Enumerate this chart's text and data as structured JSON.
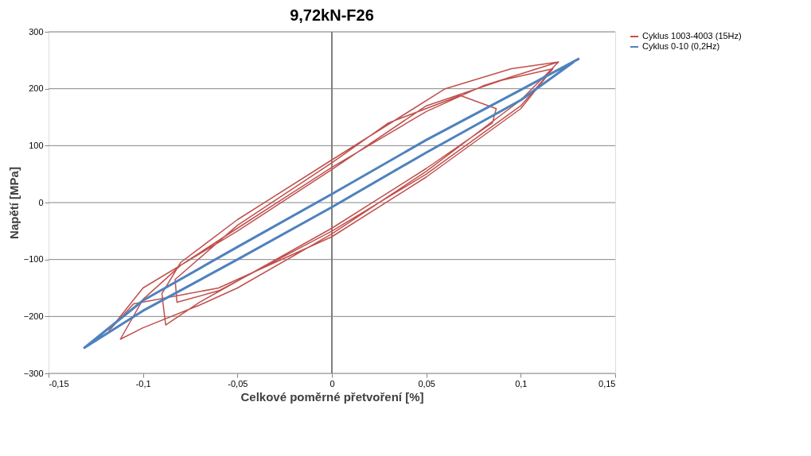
{
  "chart_data": {
    "type": "line",
    "title": "9,72kN-F26",
    "xlabel": "Celkové poměrné přetvoření [%]",
    "ylabel": "Napětí [MPa]",
    "xlim": [
      -0.15,
      0.15
    ],
    "xticks": [
      {
        "value": -0.15,
        "label": "-0,15"
      },
      {
        "value": -0.1,
        "label": "-0,1"
      },
      {
        "value": -0.05,
        "label": "-0,05"
      },
      {
        "value": 0,
        "label": "0"
      },
      {
        "value": 0.05,
        "label": "0,05"
      },
      {
        "value": 0.1,
        "label": "0,1"
      },
      {
        "value": 0.15,
        "label": "0,15"
      }
    ],
    "ylim": [
      -300,
      300
    ],
    "yticks": [
      -300,
      -200,
      -100,
      0,
      100,
      200,
      300
    ],
    "grid": "y",
    "legend": "right",
    "line_style": "solid",
    "ref_lines": [
      {
        "axis": "x",
        "value": 0,
        "color": "#7f7f7f"
      }
    ],
    "series": [
      {
        "name": "Cyklus 1003-4003 (15Hz)",
        "color": "#c0504d",
        "x": [
          0.12,
          0.08,
          0.05,
          0,
          -0.05,
          -0.08,
          -0.1,
          -0.112,
          -0.1,
          -0.07,
          -0.05,
          0,
          0.05,
          0.1,
          0.12,
          0.095,
          0.06,
          0,
          -0.05,
          -0.08,
          -0.09,
          -0.088,
          -0.07,
          0,
          0.05,
          0.085,
          0.087,
          0.068,
          0.03,
          0,
          -0.05,
          -0.083,
          -0.082,
          -0.06,
          0,
          0.05,
          0.1,
          0.117,
          0.09,
          0.05,
          0,
          -0.05,
          -0.1,
          -0.118,
          -0.105,
          -0.06,
          0,
          0.05,
          0.1,
          0.117
        ],
        "values": [
          247,
          205,
          160,
          62,
          -45,
          -110,
          -170,
          -240,
          -220,
          -180,
          -150,
          -55,
          55,
          180,
          247,
          235,
          200,
          75,
          -30,
          -105,
          -160,
          -215,
          -175,
          -45,
          60,
          140,
          165,
          188,
          140,
          70,
          -40,
          -135,
          -175,
          -155,
          -50,
          50,
          170,
          235,
          215,
          170,
          58,
          -50,
          -150,
          -225,
          -178,
          -150,
          -60,
          45,
          165,
          235
        ]
      },
      {
        "name": "Cyklus 0-10 (0,2Hz)",
        "color": "#4f81bd",
        "x": [
          0.131,
          0.1,
          0.05,
          0,
          -0.05,
          -0.1,
          -0.131,
          -0.1,
          -0.05,
          0,
          0.05,
          0.1,
          0.128
        ],
        "values": [
          253,
          198,
          110,
          15,
          -78,
          -172,
          -255,
          -190,
          -100,
          -8,
          88,
          180,
          247
        ]
      }
    ]
  }
}
